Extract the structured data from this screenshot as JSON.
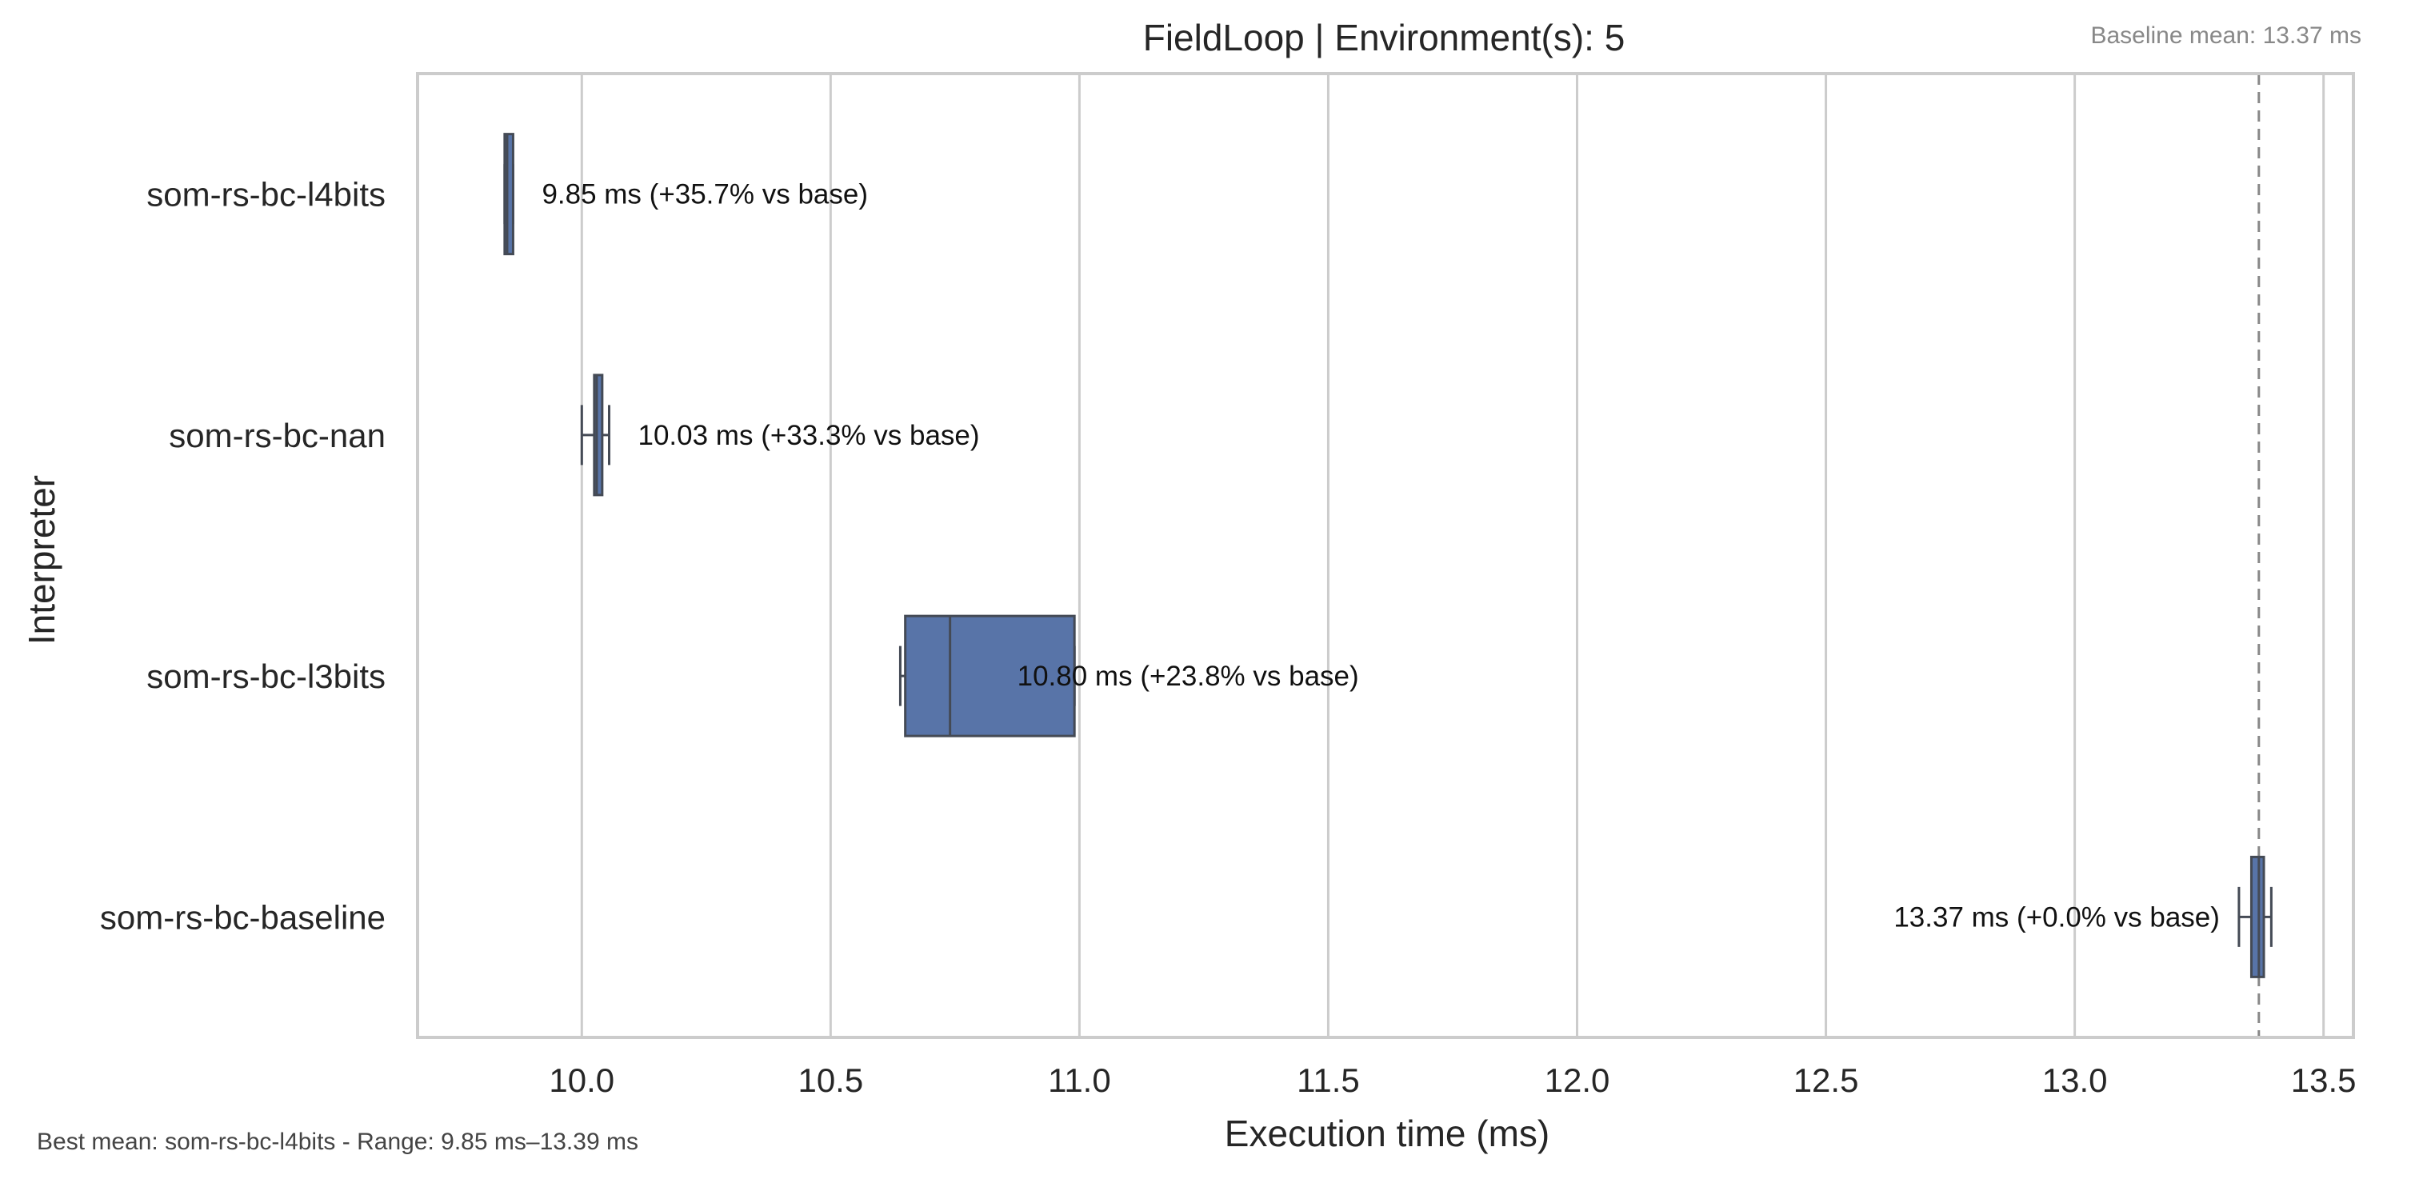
{
  "chart_data": {
    "type": "box",
    "orientation": "horizontal",
    "title": "FieldLoop | Environment(s): 5",
    "xlabel": "Execution time (ms)",
    "ylabel": "Interpreter",
    "xlim": [
      9.67,
      13.56
    ],
    "xticks": [
      10.0,
      10.5,
      11.0,
      11.5,
      12.0,
      12.5,
      13.0,
      13.5
    ],
    "xtick_labels": [
      "10.0",
      "10.5",
      "11.0",
      "11.5",
      "12.0",
      "12.5",
      "13.0",
      "13.5"
    ],
    "grid": true,
    "baseline_line": {
      "value": 13.37,
      "style": "dashed",
      "color": "#888888"
    },
    "baseline_note": "Baseline mean: 13.37 ms",
    "footer_note": "Best mean: som-rs-bc-l4bits - Range: 9.85 ms–13.39 ms",
    "box_color": "#5874a8",
    "edge_color": "#444a55",
    "categories": [
      "som-rs-bc-l4bits",
      "som-rs-bc-nan",
      "som-rs-bc-l3bits",
      "som-rs-bc-baseline"
    ],
    "boxes": [
      {
        "name": "som-rs-bc-l4bits",
        "whisker_low": 9.845,
        "q1": 9.845,
        "median": 9.85,
        "q3": 9.862,
        "whisker_high": 9.862,
        "annotation": "9.85 ms  (+35.7% vs base)"
      },
      {
        "name": "som-rs-bc-nan",
        "whisker_low": 10.0,
        "q1": 10.025,
        "median": 10.03,
        "q3": 10.04,
        "whisker_high": 10.055,
        "annotation": "10.03 ms  (+33.3% vs base)"
      },
      {
        "name": "som-rs-bc-l3bits",
        "whisker_low": 10.64,
        "q1": 10.65,
        "median": 10.74,
        "q3": 10.99,
        "whisker_high": 10.99,
        "annotation": "10.80 ms  (+23.8% vs base)"
      },
      {
        "name": "som-rs-bc-baseline",
        "whisker_low": 13.33,
        "q1": 13.355,
        "median": 13.37,
        "q3": 13.38,
        "whisker_high": 13.395,
        "annotation": "13.37 ms  (+0.0% vs base)"
      }
    ]
  }
}
